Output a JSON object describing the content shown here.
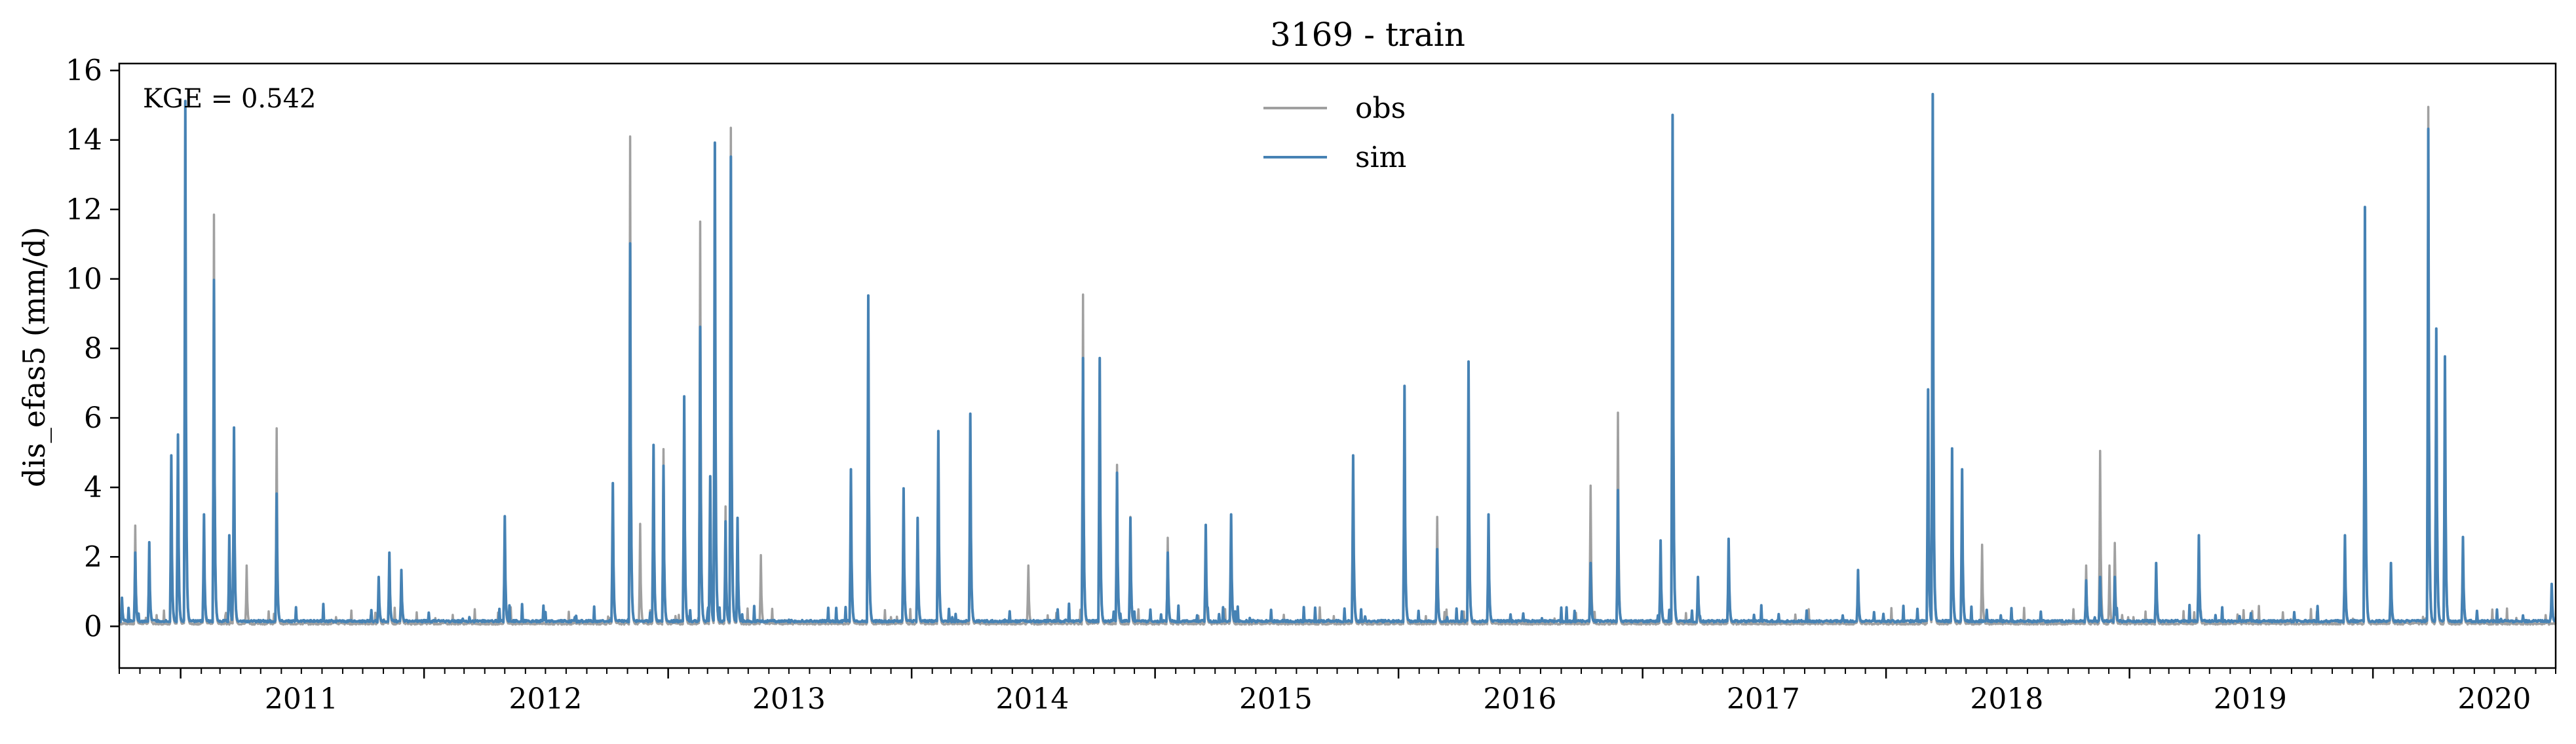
{
  "chart_data": {
    "type": "line",
    "title": "3169 - train",
    "xlabel": "",
    "ylabel": "dis_efas5 (mm/d)",
    "annotation": "KGE = 0.542",
    "xlim": [
      "2010-10-01",
      "2020-10-01"
    ],
    "ylim": [
      -1.2,
      16.2
    ],
    "xticks": [
      "2011",
      "2012",
      "2013",
      "2014",
      "2015",
      "2016",
      "2017",
      "2018",
      "2019",
      "2020"
    ],
    "yticks": [
      0,
      2,
      4,
      6,
      8,
      10,
      12,
      14,
      16
    ],
    "grid": false,
    "legend": {
      "placement": "upper-center",
      "entries": [
        "obs",
        "sim"
      ]
    },
    "series": [
      {
        "name": "obs",
        "color": "#a0a0a0",
        "baseline": 0.05,
        "peaks": [
          [
            "2010-10-25",
            2.85
          ],
          [
            "2010-11-15",
            2.35
          ],
          [
            "2010-12-18",
            4.8
          ],
          [
            "2010-12-28",
            5.4
          ],
          [
            "2011-01-08",
            14.7
          ],
          [
            "2011-02-05",
            3.1
          ],
          [
            "2011-02-20",
            11.8
          ],
          [
            "2011-03-22",
            5.6
          ],
          [
            "2011-04-10",
            1.7
          ],
          [
            "2011-05-25",
            5.65
          ],
          [
            "2011-10-25",
            1.3
          ],
          [
            "2011-11-10",
            2.0
          ],
          [
            "2011-11-28",
            1.5
          ],
          [
            "2012-05-01",
            3.0
          ],
          [
            "2012-10-10",
            4.0
          ],
          [
            "2012-11-05",
            14.05
          ],
          [
            "2012-11-20",
            2.9
          ],
          [
            "2012-12-10",
            5.1
          ],
          [
            "2012-12-25",
            5.05
          ],
          [
            "2013-01-25",
            6.5
          ],
          [
            "2013-02-18",
            11.6
          ],
          [
            "2013-03-05",
            4.2
          ],
          [
            "2013-03-12",
            13.8
          ],
          [
            "2013-03-28",
            3.4
          ],
          [
            "2013-04-05",
            14.3
          ],
          [
            "2013-04-15",
            3.0
          ],
          [
            "2013-05-20",
            2.0
          ],
          [
            "2013-10-02",
            4.4
          ],
          [
            "2013-10-28",
            9.4
          ],
          [
            "2013-12-20",
            3.85
          ],
          [
            "2014-01-10",
            3.0
          ],
          [
            "2014-02-10",
            5.4
          ],
          [
            "2014-03-30",
            6.0
          ],
          [
            "2014-06-25",
            1.7
          ],
          [
            "2014-09-15",
            9.5
          ],
          [
            "2014-10-10",
            7.6
          ],
          [
            "2014-11-05",
            4.6
          ],
          [
            "2014-11-25",
            3.1
          ],
          [
            "2015-01-20",
            2.5
          ],
          [
            "2015-03-18",
            2.8
          ],
          [
            "2015-04-25",
            3.1
          ],
          [
            "2015-10-25",
            4.8
          ],
          [
            "2016-01-10",
            6.8
          ],
          [
            "2016-02-28",
            3.1
          ],
          [
            "2016-04-15",
            7.5
          ],
          [
            "2016-05-15",
            3.1
          ],
          [
            "2016-10-15",
            4.0
          ],
          [
            "2016-11-25",
            6.1
          ],
          [
            "2017-01-28",
            2.35
          ],
          [
            "2017-02-15",
            14.6
          ],
          [
            "2017-03-25",
            1.3
          ],
          [
            "2017-05-10",
            2.4
          ],
          [
            "2017-11-20",
            1.5
          ],
          [
            "2018-03-05",
            6.5
          ],
          [
            "2018-03-12",
            15.2
          ],
          [
            "2018-04-10",
            5.0
          ],
          [
            "2018-04-25",
            4.4
          ],
          [
            "2018-05-25",
            2.3
          ],
          [
            "2018-10-28",
            1.7
          ],
          [
            "2018-11-18",
            5.0
          ],
          [
            "2018-12-02",
            1.7
          ],
          [
            "2018-12-10",
            2.35
          ],
          [
            "2019-02-10",
            1.7
          ],
          [
            "2019-04-15",
            2.5
          ],
          [
            "2019-11-20",
            2.5
          ],
          [
            "2019-12-20",
            11.95
          ],
          [
            "2020-01-28",
            1.7
          ],
          [
            "2020-03-24",
            14.9
          ],
          [
            "2020-04-05",
            8.4
          ],
          [
            "2020-04-18",
            7.6
          ],
          [
            "2020-05-15",
            2.4
          ]
        ]
      },
      {
        "name": "sim",
        "color": "#4682b4",
        "baseline": 0.12,
        "peaks": [
          [
            "2010-10-05",
            0.7
          ],
          [
            "2010-10-25",
            2.0
          ],
          [
            "2010-11-15",
            2.3
          ],
          [
            "2010-12-18",
            4.8
          ],
          [
            "2010-12-28",
            5.4
          ],
          [
            "2011-01-08",
            15.0
          ],
          [
            "2011-02-05",
            3.1
          ],
          [
            "2011-02-20",
            9.85
          ],
          [
            "2011-03-15",
            2.5
          ],
          [
            "2011-03-22",
            5.6
          ],
          [
            "2011-05-25",
            3.7
          ],
          [
            "2011-10-25",
            1.3
          ],
          [
            "2011-11-10",
            2.0
          ],
          [
            "2011-11-28",
            1.5
          ],
          [
            "2012-05-01",
            3.05
          ],
          [
            "2012-10-10",
            4.0
          ],
          [
            "2012-11-05",
            10.9
          ],
          [
            "2012-12-10",
            5.1
          ],
          [
            "2012-12-25",
            4.5
          ],
          [
            "2013-01-25",
            6.5
          ],
          [
            "2013-02-18",
            8.5
          ],
          [
            "2013-03-05",
            4.2
          ],
          [
            "2013-03-12",
            13.8
          ],
          [
            "2013-03-28",
            2.9
          ],
          [
            "2013-04-05",
            13.4
          ],
          [
            "2013-04-15",
            3.0
          ],
          [
            "2013-10-02",
            4.4
          ],
          [
            "2013-10-28",
            9.4
          ],
          [
            "2013-12-20",
            3.85
          ],
          [
            "2014-01-10",
            3.0
          ],
          [
            "2014-02-10",
            5.5
          ],
          [
            "2014-03-30",
            6.0
          ],
          [
            "2014-09-15",
            7.6
          ],
          [
            "2014-10-10",
            7.6
          ],
          [
            "2014-11-05",
            4.3
          ],
          [
            "2014-11-25",
            3.0
          ],
          [
            "2015-01-20",
            2.0
          ],
          [
            "2015-03-18",
            2.8
          ],
          [
            "2015-04-25",
            3.1
          ],
          [
            "2015-10-25",
            4.8
          ],
          [
            "2016-01-10",
            6.8
          ],
          [
            "2016-02-28",
            2.1
          ],
          [
            "2016-04-15",
            7.5
          ],
          [
            "2016-05-15",
            3.1
          ],
          [
            "2016-10-15",
            1.7
          ],
          [
            "2016-11-25",
            3.8
          ],
          [
            "2017-01-28",
            2.35
          ],
          [
            "2017-02-15",
            14.6
          ],
          [
            "2017-03-25",
            1.3
          ],
          [
            "2017-05-10",
            2.4
          ],
          [
            "2017-11-20",
            1.5
          ],
          [
            "2018-03-05",
            6.7
          ],
          [
            "2018-03-12",
            15.2
          ],
          [
            "2018-04-10",
            5.0
          ],
          [
            "2018-04-25",
            4.4
          ],
          [
            "2018-10-28",
            1.2
          ],
          [
            "2018-11-18",
            1.3
          ],
          [
            "2018-12-10",
            1.3
          ],
          [
            "2019-02-10",
            1.7
          ],
          [
            "2019-04-15",
            2.5
          ],
          [
            "2019-11-20",
            2.5
          ],
          [
            "2019-12-20",
            11.95
          ],
          [
            "2020-01-28",
            1.7
          ],
          [
            "2020-03-24",
            14.2
          ],
          [
            "2020-04-05",
            8.45
          ],
          [
            "2020-04-18",
            7.65
          ],
          [
            "2020-05-15",
            2.45
          ],
          [
            "2020-09-25",
            1.1
          ]
        ]
      }
    ]
  }
}
